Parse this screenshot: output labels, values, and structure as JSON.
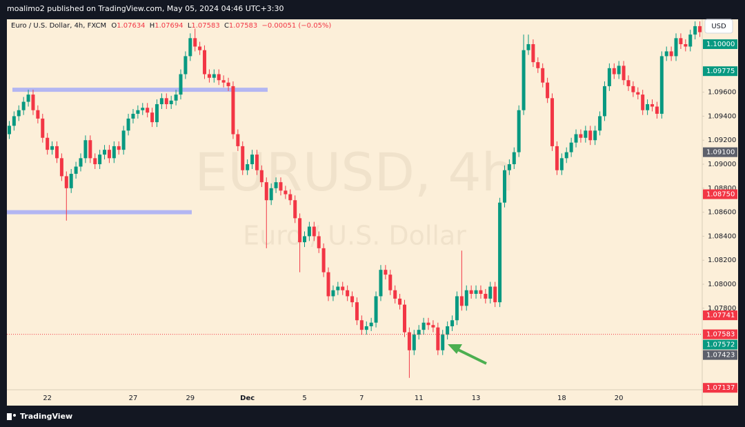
{
  "header": "moalimo2 published on TradingView.com, May 05, 2024 04:46 UTC+3:30",
  "footer": "TradingView",
  "chart_data": {
    "type": "candlestick",
    "legend": {
      "symbol": "Euro / U.S. Dollar, 4h, FXCM",
      "ohlc": [
        {
          "key": "O",
          "value": "1.07634"
        },
        {
          "key": "H",
          "value": "1.07694"
        },
        {
          "key": "L",
          "value": "1.07583"
        },
        {
          "key": "C",
          "value": "1.07583"
        }
      ],
      "change": "−0.00051 (−0.05%)"
    },
    "watermark": {
      "symbol": "EURUSD, 4h",
      "description": "Euro / U.S. Dollar"
    },
    "currency": "USD",
    "up_color": "#089981",
    "down_color": "#f23645",
    "categories": [
      null,
      null,
      null,
      null,
      null,
      null,
      null,
      null,
      "22",
      null,
      null,
      null,
      null,
      null,
      null,
      null,
      null,
      null,
      null,
      null,
      null,
      null,
      null,
      null,
      null,
      null,
      "27",
      null,
      null,
      null,
      null,
      null,
      null,
      null,
      null,
      null,
      null,
      null,
      "29",
      null,
      null,
      null,
      null,
      null,
      null,
      null,
      null,
      null,
      null,
      null,
      "Dec",
      null,
      null,
      null,
      null,
      null,
      null,
      null,
      null,
      null,
      null,
      null,
      "5",
      null,
      null,
      null,
      null,
      null,
      null,
      null,
      null,
      null,
      null,
      null,
      "7",
      null,
      null,
      null,
      null,
      null,
      null,
      null,
      null,
      null,
      null,
      null,
      "11",
      null,
      null,
      null,
      null,
      null,
      null,
      null,
      null,
      null,
      null,
      null,
      "13",
      null,
      null,
      null,
      null,
      null,
      null,
      null,
      null,
      null,
      null,
      null,
      null,
      null,
      null,
      null,
      null,
      null,
      "18",
      null,
      null,
      null,
      null,
      null,
      null,
      null,
      null,
      null,
      null,
      null,
      "20",
      null,
      null,
      null,
      null,
      null,
      null,
      null,
      null,
      null,
      null,
      null,
      null,
      null,
      null,
      null,
      null,
      null
    ],
    "open": [
      1.0925,
      1.0932,
      1.094,
      1.0945,
      1.0952,
      1.0958,
      1.0945,
      1.0938,
      1.0922,
      1.0912,
      1.0915,
      1.0905,
      1.089,
      1.088,
      1.0892,
      1.0898,
      1.0905,
      1.092,
      1.0905,
      1.09,
      1.0908,
      1.0912,
      1.0905,
      1.0915,
      1.0912,
      1.0928,
      1.0938,
      1.0942,
      1.0945,
      1.0947,
      1.0943,
      1.0935,
      1.095,
      1.0955,
      1.095,
      1.0953,
      1.0958,
      1.0975,
      1.099,
      1.1005,
      1.0998,
      1.0995,
      1.0975,
      1.0972,
      1.0975,
      1.097,
      1.0968,
      1.0965,
      1.0925,
      1.0915,
      1.0895,
      1.09,
      1.0908,
      1.0895,
      1.0885,
      1.087,
      1.088,
      1.0885,
      1.0878,
      1.0875,
      1.087,
      1.0855,
      1.0835,
      1.084,
      1.0848,
      1.084,
      1.083,
      1.081,
      1.079,
      1.0795,
      1.0798,
      1.0795,
      1.079,
      1.0785,
      1.077,
      1.0762,
      1.0765,
      1.0768,
      1.079,
      1.0812,
      1.0808,
      1.0795,
      1.0788,
      1.0783,
      1.076,
      1.0745,
      1.0758,
      1.0762,
      1.0768,
      1.0766,
      1.0764,
      1.0745,
      1.0758,
      1.0765,
      1.077,
      1.079,
      1.0782,
      1.0795,
      1.0792,
      1.0795,
      1.0792,
      1.0788,
      1.0798,
      1.0785,
      1.0868,
      1.0895,
      1.09,
      1.091,
      1.0945,
      1.0995,
      1.1,
      1.0985,
      1.098,
      1.0968,
      1.0955,
      1.0915,
      1.0895,
      1.0905,
      1.091,
      1.0918,
      1.0925,
      1.0922,
      1.0928,
      1.092,
      1.0928,
      1.094,
      1.0965,
      1.098,
      1.0975,
      1.0982,
      1.097,
      1.0965,
      1.096,
      1.0958,
      1.0945,
      1.095,
      1.0948,
      1.0942,
      1.099,
      1.0994,
      1.099,
      1.1005,
      1.1,
      1.0998,
      1.1008,
      1.1015
    ],
    "high": [
      1.0936,
      1.0944,
      1.0949,
      1.0956,
      1.0962,
      1.0962,
      1.0949,
      1.0942,
      1.0926,
      1.0919,
      1.0919,
      1.0909,
      1.0894,
      1.0896,
      1.0902,
      1.0909,
      1.0924,
      1.0924,
      1.0909,
      1.0912,
      1.0916,
      1.0916,
      1.0919,
      1.0919,
      1.0932,
      1.0942,
      1.0946,
      1.0949,
      1.0951,
      1.0951,
      1.0947,
      1.0954,
      1.0959,
      1.0959,
      1.0957,
      1.0962,
      1.0979,
      1.0994,
      1.1009,
      1.1013,
      1.1002,
      1.0999,
      1.0979,
      1.0979,
      1.0979,
      1.0974,
      1.0972,
      1.0969,
      1.0929,
      1.0919,
      1.0904,
      1.0912,
      1.0912,
      1.0899,
      1.0889,
      1.0884,
      1.0889,
      1.0889,
      1.0882,
      1.0879,
      1.0874,
      1.0859,
      1.0844,
      1.0852,
      1.0852,
      1.0844,
      1.0834,
      1.0814,
      1.0799,
      1.0802,
      1.0802,
      1.0799,
      1.0794,
      1.0789,
      1.0774,
      1.0769,
      1.0772,
      1.0794,
      1.0816,
      1.0816,
      1.0812,
      1.0799,
      1.0792,
      1.0787,
      1.0764,
      1.0762,
      1.0766,
      1.0772,
      1.0772,
      1.077,
      1.0768,
      1.0762,
      1.0769,
      1.0774,
      1.0794,
      1.0828,
      1.0799,
      1.0799,
      1.0799,
      1.0799,
      1.0796,
      1.0802,
      1.0802,
      1.0872,
      1.0899,
      1.0904,
      1.0914,
      1.0949,
      1.1008,
      1.1008,
      1.1004,
      1.0989,
      1.0984,
      1.0972,
      1.0959,
      1.0919,
      1.0909,
      1.0914,
      1.0922,
      1.0929,
      1.0929,
      1.0932,
      1.0932,
      1.0932,
      1.0944,
      1.0969,
      1.0984,
      1.0984,
      1.0986,
      1.0986,
      1.0974,
      1.0969,
      1.0964,
      1.0962,
      1.0954,
      1.0954,
      1.0952,
      1.0994,
      1.0998,
      1.0998,
      1.1009,
      1.1009,
      1.1004,
      1.1012,
      1.1019,
      1.1019
    ],
    "low": [
      1.0921,
      1.0928,
      1.0936,
      1.0941,
      1.0948,
      1.0941,
      1.0934,
      1.0918,
      1.0908,
      1.0908,
      1.0901,
      1.0886,
      1.0853,
      1.0876,
      1.0888,
      1.0894,
      1.0901,
      1.0901,
      1.0896,
      1.0896,
      1.0904,
      1.0901,
      1.0901,
      1.0908,
      1.0908,
      1.0924,
      1.0934,
      1.0938,
      1.0941,
      1.0939,
      1.0931,
      1.0931,
      1.0946,
      1.0946,
      1.0946,
      1.0949,
      1.0954,
      1.0971,
      1.0986,
      1.0994,
      1.0991,
      1.0971,
      1.0968,
      1.0968,
      1.0966,
      1.0964,
      1.0961,
      1.0921,
      1.0911,
      1.0891,
      1.0891,
      1.0896,
      1.0891,
      1.0881,
      1.083,
      1.0866,
      1.0876,
      1.0874,
      1.0871,
      1.0866,
      1.0851,
      1.081,
      1.0831,
      1.0836,
      1.0836,
      1.0826,
      1.0806,
      1.0786,
      1.0786,
      1.0791,
      1.0791,
      1.0786,
      1.0781,
      1.0766,
      1.0758,
      1.0758,
      1.0761,
      1.0764,
      1.0786,
      1.0804,
      1.0791,
      1.0784,
      1.0779,
      1.0756,
      1.0722,
      1.0741,
      1.0754,
      1.0758,
      1.0762,
      1.076,
      1.0741,
      1.0741,
      1.0754,
      1.0761,
      1.0766,
      1.0778,
      1.0778,
      1.0788,
      1.0788,
      1.0788,
      1.0784,
      1.0784,
      1.0781,
      1.0781,
      1.0864,
      1.0891,
      1.0896,
      1.0906,
      1.0941,
      1.0991,
      1.0981,
      1.0976,
      1.0964,
      1.0951,
      1.0911,
      1.0891,
      1.0891,
      1.0901,
      1.0906,
      1.0914,
      1.0918,
      1.0918,
      1.0916,
      1.0916,
      1.0924,
      1.0936,
      1.0961,
      1.0971,
      1.0971,
      1.0966,
      1.0961,
      1.0956,
      1.0954,
      1.0941,
      1.0941,
      1.0944,
      1.0938,
      1.0938,
      1.0986,
      1.0986,
      1.0986,
      1.0996,
      1.0994,
      1.0994,
      1.1004,
      1.1006
    ],
    "close": [
      1.0932,
      1.094,
      1.0945,
      1.0952,
      1.0958,
      1.0945,
      1.0938,
      1.0922,
      1.0912,
      1.0915,
      1.0905,
      1.089,
      1.088,
      1.0892,
      1.0898,
      1.0905,
      1.092,
      1.0905,
      1.09,
      1.0908,
      1.0912,
      1.0905,
      1.0915,
      1.0912,
      1.0928,
      1.0938,
      1.0942,
      1.0945,
      1.0947,
      1.0943,
      1.0935,
      1.095,
      1.0955,
      1.095,
      1.0953,
      1.0958,
      1.0975,
      1.099,
      1.1005,
      1.0998,
      1.0995,
      1.0975,
      1.0972,
      1.0975,
      1.097,
      1.0968,
      1.0965,
      1.0925,
      1.0915,
      1.0895,
      1.09,
      1.0908,
      1.0895,
      1.0885,
      1.087,
      1.088,
      1.0885,
      1.0878,
      1.0875,
      1.087,
      1.0855,
      1.0835,
      1.084,
      1.0848,
      1.084,
      1.083,
      1.081,
      1.079,
      1.0795,
      1.0798,
      1.0795,
      1.079,
      1.0785,
      1.077,
      1.0762,
      1.0765,
      1.0768,
      1.079,
      1.0812,
      1.0808,
      1.0795,
      1.0788,
      1.0783,
      1.076,
      1.0745,
      1.0758,
      1.0762,
      1.0768,
      1.0766,
      1.0764,
      1.0745,
      1.0758,
      1.0765,
      1.077,
      1.079,
      1.0782,
      1.0795,
      1.0792,
      1.0795,
      1.0792,
      1.0788,
      1.0798,
      1.0785,
      1.0868,
      1.0895,
      1.09,
      1.091,
      1.0945,
      1.0995,
      1.1,
      1.0985,
      1.098,
      1.0968,
      1.0955,
      1.0915,
      1.0895,
      1.0905,
      1.091,
      1.0918,
      1.0925,
      1.0922,
      1.0928,
      1.092,
      1.0928,
      1.094,
      1.0965,
      1.098,
      1.0975,
      1.0982,
      1.097,
      1.0965,
      1.096,
      1.0958,
      1.0945,
      1.095,
      1.0948,
      1.0942,
      1.099,
      1.0994,
      1.099,
      1.1005,
      1.1,
      1.0998,
      1.1008,
      1.1015,
      1.101
    ],
    "ylim": [
      1.07121,
      1.10207
    ],
    "yticks": [
      {
        "value": 1.096,
        "label": "1.09600"
      },
      {
        "value": 1.094,
        "label": "1.09400"
      },
      {
        "value": 1.092,
        "label": "1.09200"
      },
      {
        "value": 1.09,
        "label": "1.09000"
      },
      {
        "value": 1.088,
        "label": "1.08800"
      },
      {
        "value": 1.086,
        "label": "1.08600"
      },
      {
        "value": 1.084,
        "label": "1.08400"
      },
      {
        "value": 1.082,
        "label": "1.08200"
      },
      {
        "value": 1.08,
        "label": "1.08000"
      },
      {
        "value": 1.078,
        "label": "1.07800"
      }
    ],
    "price_tags": [
      {
        "value": 1.1,
        "label": "1.10000",
        "color": "#089981"
      },
      {
        "value": 1.09775,
        "label": "1.09775",
        "color": "#089981"
      },
      {
        "value": 1.091,
        "label": "1.09100",
        "color": "#5d606b"
      },
      {
        "value": 1.0875,
        "label": "1.08750",
        "color": "#f23645"
      },
      {
        "value": 1.07741,
        "label": "1.07741",
        "color": "#f23645"
      },
      {
        "value": 1.07583,
        "label": "1.07583",
        "color": "#f23645",
        "line": "dotted"
      },
      {
        "value": 1.07572,
        "label": "1.07572",
        "color": "#089981"
      },
      {
        "value": 1.07423,
        "label": "1.07423",
        "color": "#5d606b"
      },
      {
        "value": 1.07137,
        "label": "1.07137",
        "color": "#f23645"
      }
    ],
    "horizontal_lines": [
      {
        "value": 1.0962,
        "color": "#b3b6f2"
      },
      {
        "value": 1.086,
        "color": "#b3b6f2"
      }
    ]
  }
}
